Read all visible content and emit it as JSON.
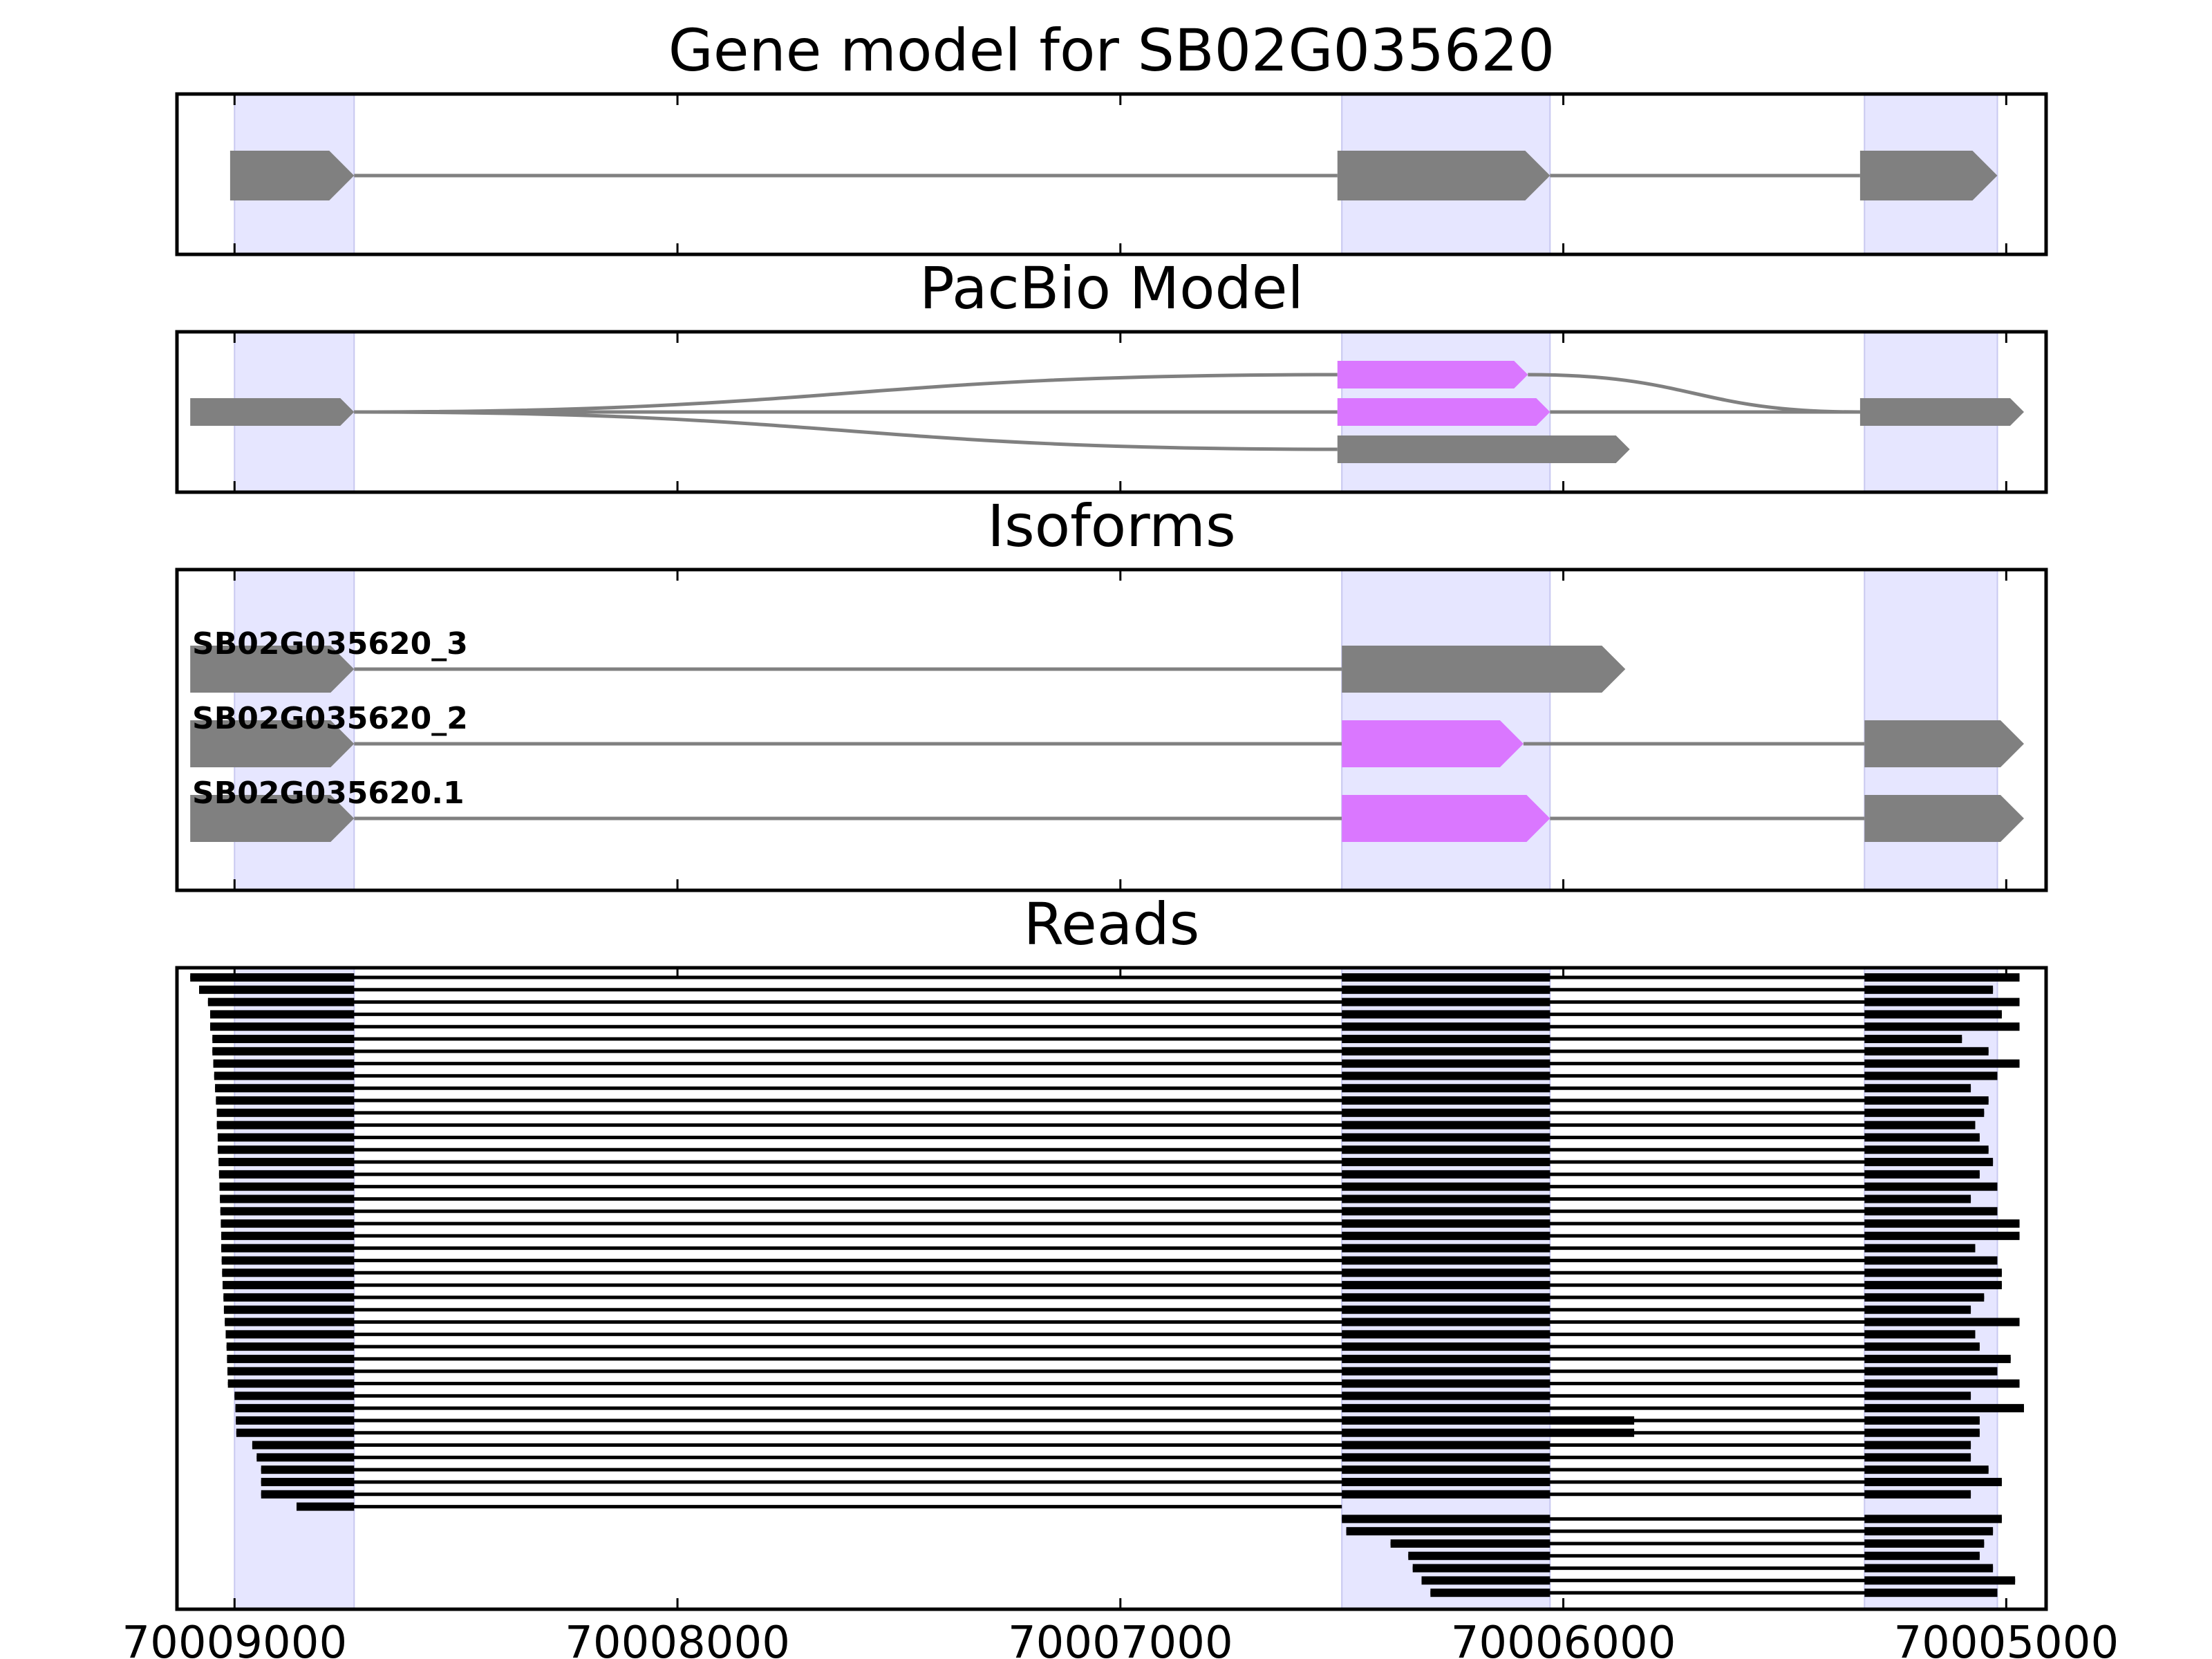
{
  "chart_data": {
    "type": "gene-structure",
    "xlim": [
      70009130,
      70004910
    ],
    "xticks": [
      70009000,
      70008000,
      70007000,
      70006000,
      70005000
    ],
    "xtick_labels": [
      "70009000",
      "70008000",
      "70007000",
      "70006000",
      "70005000"
    ],
    "highlight_regions": [
      [
        70009000,
        70008730
      ],
      [
        70006500,
        70006030
      ],
      [
        70005320,
        70005020
      ]
    ],
    "colors": {
      "exon": "#808080",
      "alt_exon": "#da77ff",
      "intron": "#808080",
      "band": "#e6e6ff",
      "read": "#000000"
    },
    "panels": [
      {
        "id": "gene-model",
        "title": "Gene model for SB02G035620",
        "tracks": [
          {
            "label": "",
            "exons": [
              [
                70009010,
                70008730
              ],
              [
                70006510,
                70006030
              ],
              [
                70005330,
                70005020
              ]
            ],
            "alt_exons": []
          }
        ]
      },
      {
        "id": "pacbio-model",
        "title": "PacBio Model",
        "tracks": [
          {
            "label": "",
            "exons": [
              [
                70009100,
                70008730
              ]
            ],
            "alt_exons": []
          },
          {
            "label": "",
            "exons": [
              [
                70005330,
                70004960
              ]
            ],
            "alt_exons": [
              [
                70006510,
                70006030
              ]
            ]
          },
          {
            "label": "",
            "exons": [],
            "alt_exons": [
              [
                70006510,
                70006080
              ]
            ]
          },
          {
            "label": "",
            "exons": [
              [
                70006510,
                70005850
              ]
            ],
            "alt_exons": []
          }
        ]
      },
      {
        "id": "isoforms",
        "title": "Isoforms",
        "tracks": [
          {
            "label": "SB02G035620_3",
            "exons": [
              [
                70009100,
                70008730
              ],
              [
                70006500,
                70005860
              ]
            ],
            "alt_exons": []
          },
          {
            "label": "SB02G035620_2",
            "exons": [
              [
                70009100,
                70008730
              ],
              [
                70005320,
                70004960
              ]
            ],
            "alt_exons": [
              [
                70006500,
                70006090
              ]
            ]
          },
          {
            "label": "SB02G035620.1",
            "exons": [
              [
                70009100,
                70008730
              ],
              [
                70005320,
                70004960
              ]
            ],
            "alt_exons": [
              [
                70006500,
                70006030
              ]
            ]
          }
        ]
      },
      {
        "id": "reads",
        "title": "Reads",
        "reads": [
          {
            "s": 70009100,
            "e": 70004970
          },
          {
            "s": 70009080,
            "e": 70005030
          },
          {
            "s": 70009060,
            "e": 70004970
          },
          {
            "s": 70009055,
            "e": 70005010
          },
          {
            "s": 70009055,
            "e": 70004970
          },
          {
            "s": 70009050,
            "e": 70005100
          },
          {
            "s": 70009050,
            "e": 70005040
          },
          {
            "s": 70009048,
            "e": 70004970
          },
          {
            "s": 70009046,
            "e": 70005020
          },
          {
            "s": 70009044,
            "e": 70005080
          },
          {
            "s": 70009042,
            "e": 70005040
          },
          {
            "s": 70009040,
            "e": 70005050
          },
          {
            "s": 70009040,
            "e": 70005070
          },
          {
            "s": 70009038,
            "e": 70005060
          },
          {
            "s": 70009038,
            "e": 70005040
          },
          {
            "s": 70009036,
            "e": 70005030
          },
          {
            "s": 70009035,
            "e": 70005060
          },
          {
            "s": 70009034,
            "e": 70005020
          },
          {
            "s": 70009033,
            "e": 70005080
          },
          {
            "s": 70009032,
            "e": 70005020
          },
          {
            "s": 70009031,
            "e": 70004970
          },
          {
            "s": 70009030,
            "e": 70004970
          },
          {
            "s": 70009030,
            "e": 70005070
          },
          {
            "s": 70009029,
            "e": 70005020
          },
          {
            "s": 70009028,
            "e": 70005010
          },
          {
            "s": 70009027,
            "e": 70005010
          },
          {
            "s": 70009025,
            "e": 70005050
          },
          {
            "s": 70009024,
            "e": 70005080
          },
          {
            "s": 70009022,
            "e": 70004970
          },
          {
            "s": 70009020,
            "e": 70005070
          },
          {
            "s": 70009018,
            "e": 70005060
          },
          {
            "s": 70009017,
            "e": 70004990
          },
          {
            "s": 70009016,
            "e": 70005020
          },
          {
            "s": 70009015,
            "e": 70004970
          },
          {
            "s": 70009000,
            "e": 70005080
          },
          {
            "s": 70008998,
            "e": 70004960
          },
          {
            "s": 70008997,
            "e": 70005060,
            "m": 70005840
          },
          {
            "s": 70008996,
            "e": 70005060,
            "m": 70005840
          },
          {
            "s": 70008960,
            "e": 70005080
          },
          {
            "s": 70008950,
            "e": 70005080
          },
          {
            "s": 70008940,
            "e": 70005040
          },
          {
            "s": 70008940,
            "e": 70005010
          },
          {
            "s": 70008940,
            "e": 70005080
          },
          {
            "s": 70008860,
            "e": 70006500,
            "m": 70006030
          },
          {
            "s": 70006500,
            "e": 70005010
          },
          {
            "s": 70006490,
            "e": 70005030
          },
          {
            "s": 70006390,
            "e": 70005050
          },
          {
            "s": 70006350,
            "e": 70005060
          },
          {
            "s": 70006340,
            "e": 70005030
          },
          {
            "s": 70006320,
            "e": 70004980
          },
          {
            "s": 70006300,
            "e": 70005020
          }
        ]
      }
    ]
  }
}
